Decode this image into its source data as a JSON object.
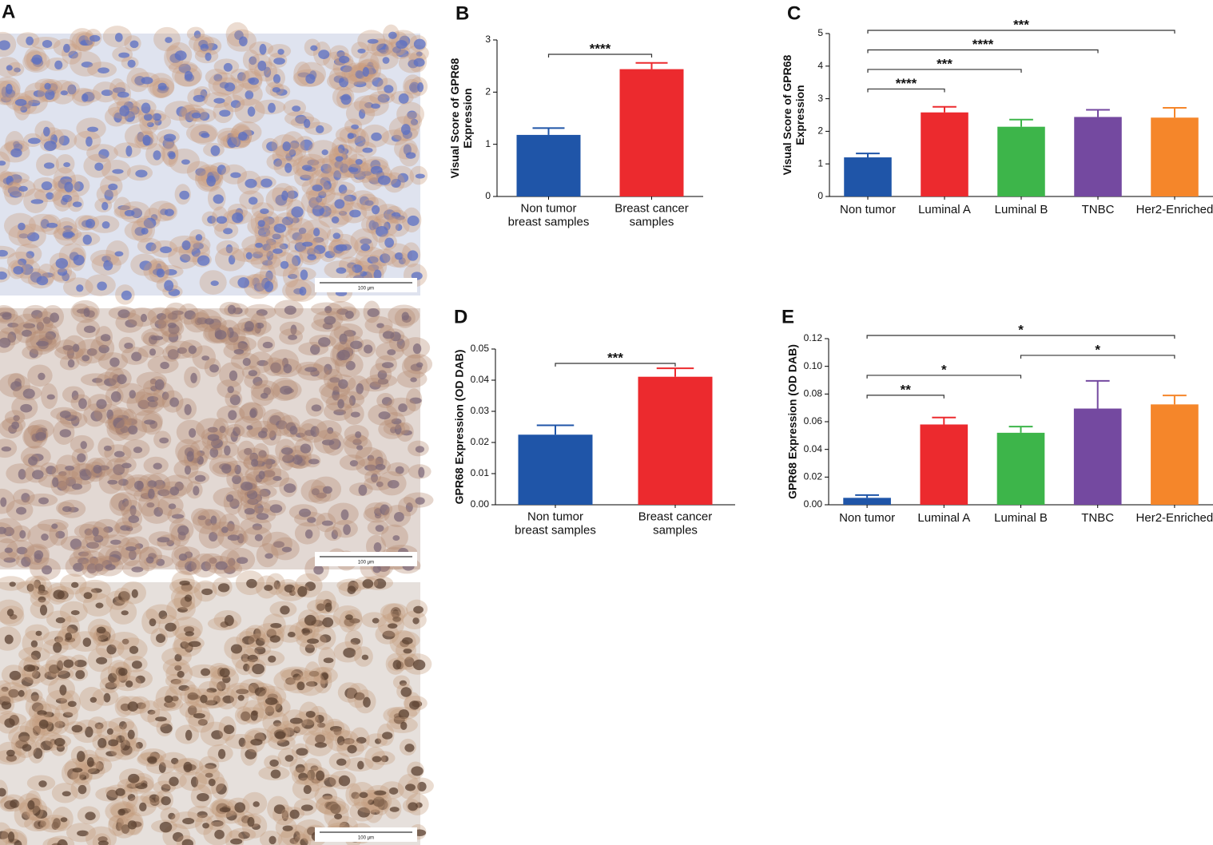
{
  "figure": {
    "label": "A",
    "scale_bars": [
      "100 μm",
      "100 μm",
      "100 μm"
    ]
  },
  "chart_data": [
    {
      "type": "bar",
      "label": "B",
      "ylabel": "Visual Score of GPR68\nExpression",
      "categories": [
        "Non tumor\nbreast samples",
        "Breast cancer\nsamples"
      ],
      "series": [
        {
          "colors": [
            "#1f55a8",
            "#ec2a2e"
          ],
          "values": [
            1.18,
            2.44
          ],
          "errors": [
            0.13,
            0.12
          ]
        }
      ],
      "ylim": [
        0,
        3
      ],
      "yticks": [
        0,
        1,
        2,
        3
      ],
      "annotations": [
        {
          "text": "****",
          "from": "Non tumor\nbreast samples",
          "to": "Breast cancer\nsamples"
        }
      ]
    },
    {
      "type": "bar",
      "label": "C",
      "ylabel": "Visual Score of GPR68\nExpression",
      "categories": [
        "Non tumor",
        "Luminal A",
        "Luminal B",
        "TNBC",
        "Her2-Enriched"
      ],
      "series": [
        {
          "colors": [
            "#1f55a8",
            "#ec2a2e",
            "#3db54a",
            "#7449a0",
            "#f5862a"
          ],
          "values": [
            1.2,
            2.58,
            2.14,
            2.44,
            2.42
          ],
          "errors": [
            0.12,
            0.17,
            0.22,
            0.22,
            0.3
          ]
        }
      ],
      "ylim": [
        0,
        5
      ],
      "yticks": [
        0,
        1,
        2,
        3,
        4,
        5
      ],
      "annotations": [
        {
          "text": "****",
          "from": "Non tumor",
          "to": "Luminal A"
        },
        {
          "text": "***",
          "from": "Non tumor",
          "to": "Luminal B"
        },
        {
          "text": "****",
          "from": "Non tumor",
          "to": "TNBC"
        },
        {
          "text": "***",
          "from": "Non tumor",
          "to": "Her2-Enriched"
        }
      ]
    },
    {
      "type": "bar",
      "label": "D",
      "ylabel": "GPR68 Expression (OD DAB)",
      "categories": [
        "Non tumor\nbreast samples",
        "Breast cancer\nsamples"
      ],
      "series": [
        {
          "colors": [
            "#1f55a8",
            "#ec2a2e"
          ],
          "values": [
            0.0225,
            0.0411
          ],
          "errors": [
            0.003,
            0.0027
          ]
        }
      ],
      "ylim": [
        0,
        0.05
      ],
      "yticks": [
        {
          "value": 0,
          "label": "0.00"
        },
        0.01,
        0.02,
        0.03,
        0.04,
        0.05
      ],
      "annotations": [
        {
          "text": "***",
          "from": "Non tumor\nbreast samples",
          "to": "Breast cancer\nsamples"
        }
      ]
    },
    {
      "type": "bar",
      "label": "E",
      "ylabel": "GPR68 Expression (OD DAB)",
      "categories": [
        "Non tumor",
        "Luminal A",
        "Luminal B",
        "TNBC",
        "Her2-Enriched"
      ],
      "series": [
        {
          "colors": [
            "#1f55a8",
            "#ec2a2e",
            "#3db54a",
            "#7449a0",
            "#f5862a"
          ],
          "values": [
            0.005,
            0.058,
            0.052,
            0.0695,
            0.0725
          ],
          "errors": [
            0.002,
            0.005,
            0.0045,
            0.02,
            0.0065
          ]
        }
      ],
      "ylim": [
        0,
        0.12
      ],
      "yticks": [
        {
          "value": 0,
          "label": "0.00"
        },
        0.02,
        0.04,
        0.06,
        0.08,
        {
          "value": 0.1,
          "label": "0.10"
        },
        0.12
      ],
      "annotations": [
        {
          "text": "**",
          "from": "Non tumor",
          "to": "Luminal A"
        },
        {
          "text": "*",
          "from": "Non tumor",
          "to": "Luminal B"
        },
        {
          "text": "*",
          "from": "Luminal B",
          "to": "Her2-Enriched"
        },
        {
          "text": "*",
          "from": "Non tumor",
          "to": "Her2-Enriched"
        }
      ]
    }
  ]
}
